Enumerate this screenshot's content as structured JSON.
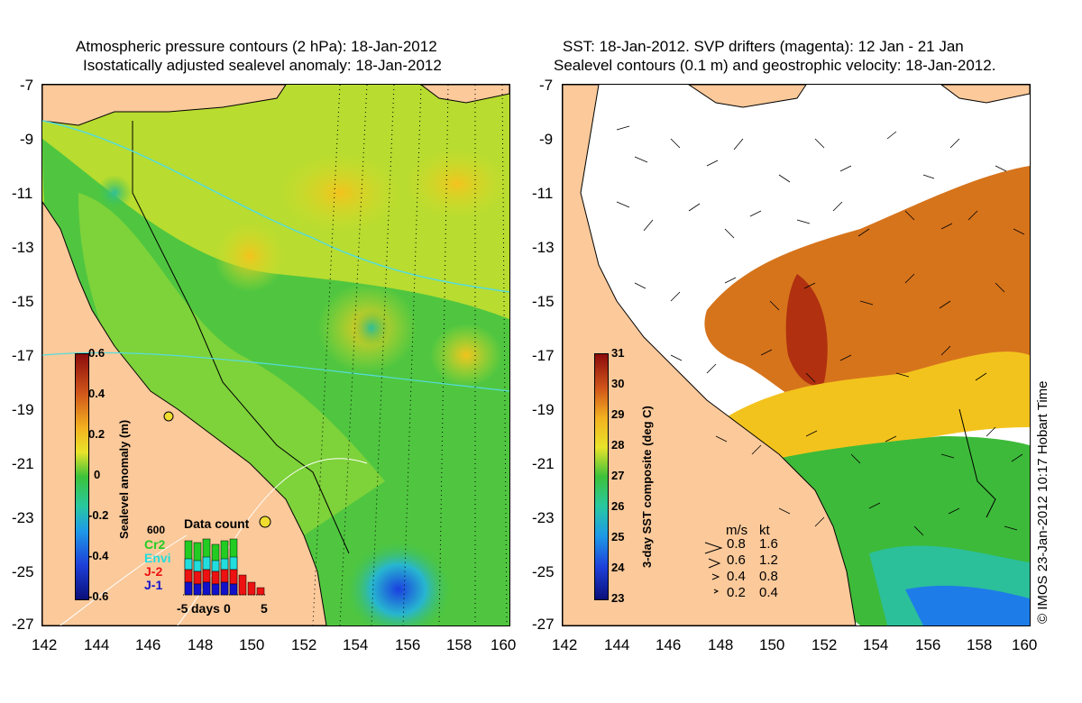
{
  "left_panel": {
    "title_line1": "Atmospheric pressure contours (2 hPa): 18-Jan-2012",
    "title_line2": "Isostatically adjusted sealevel anomaly: 18-Jan-2012",
    "colorbar": {
      "label": "Sealevel anomaly (m)",
      "ticks": [
        "0.6",
        "0.4",
        "0.2",
        "0",
        "-0.2",
        "-0.4",
        "-0.6"
      ]
    },
    "data_count": {
      "title": "Data count",
      "ymax_label": "600",
      "missions": [
        {
          "name": "Cr2",
          "color": "#22cc22"
        },
        {
          "name": "Envi",
          "color": "#22dddd"
        },
        {
          "name": "J-2",
          "color": "#ee1111"
        },
        {
          "name": "J-1",
          "color": "#1111cc"
        }
      ],
      "x_ticks": [
        "-5",
        "days",
        "0",
        "5"
      ]
    }
  },
  "right_panel": {
    "title_line1": "SST: 18-Jan-2012. SVP drifters (magenta): 12 Jan - 21 Jan",
    "title_line2": "Sealevel contours (0.1 m) and geostrophic velocity: 18-Jan-2012.",
    "colorbar": {
      "label": "3-day SST composite (deg C)",
      "ticks": [
        "31",
        "30",
        "29",
        "28",
        "27",
        "26",
        "25",
        "24",
        "23"
      ]
    },
    "velocity_legend": {
      "header_ms": "m/s",
      "header_kt": "kt",
      "rows": [
        {
          "ms": "0.8",
          "kt": "1.6"
        },
        {
          "ms": "0.6",
          "kt": "1.2"
        },
        {
          "ms": "0.4",
          "kt": "0.8"
        },
        {
          "ms": "0.2",
          "kt": "0.4"
        }
      ]
    }
  },
  "axes": {
    "y_ticks": [
      "-7",
      "-9",
      "-11",
      "-13",
      "-15",
      "-17",
      "-19",
      "-21",
      "-23",
      "-25",
      "-27"
    ],
    "x_ticks": [
      "142",
      "144",
      "146",
      "148",
      "150",
      "152",
      "154",
      "156",
      "158",
      "160"
    ]
  },
  "copyright": "© IMOS 23-Jan-2012 10:17 Hobart Time",
  "colors": {
    "land": "#fbc99a",
    "sla_green": "#44c43c",
    "sla_yellow": "#cfe12a",
    "sst_orange": "#d6741c",
    "sst_green": "#3dba3a"
  }
}
